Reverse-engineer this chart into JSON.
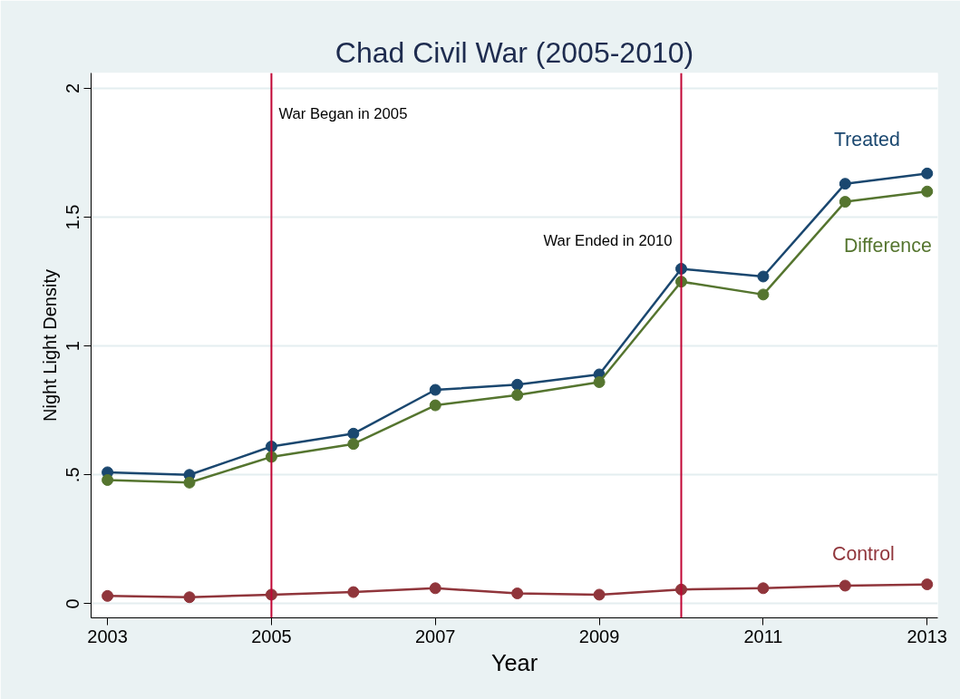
{
  "chart_data": {
    "type": "line",
    "title": "Chad Civil War (2005-2010)",
    "xlabel": "Year",
    "ylabel": "Night Light Density",
    "x": [
      2003,
      2004,
      2005,
      2006,
      2007,
      2008,
      2009,
      2010,
      2011,
      2012,
      2013
    ],
    "series": [
      {
        "name": "Treated",
        "color": "#1a476f",
        "values": [
          0.51,
          0.5,
          0.61,
          0.66,
          0.83,
          0.85,
          0.89,
          1.3,
          1.27,
          1.63,
          1.67
        ]
      },
      {
        "name": "Difference",
        "color": "#55752f",
        "values": [
          0.48,
          0.47,
          0.57,
          0.62,
          0.77,
          0.81,
          0.86,
          1.25,
          1.2,
          1.56,
          1.6
        ]
      },
      {
        "name": "Control",
        "color": "#90353b",
        "values": [
          0.03,
          0.025,
          0.035,
          0.045,
          0.06,
          0.04,
          0.035,
          0.055,
          0.06,
          0.07,
          0.075
        ]
      }
    ],
    "ref_lines": [
      {
        "axis": "x",
        "value": 2005,
        "label": "War Began in 2005",
        "color": "#c10534"
      },
      {
        "axis": "x",
        "value": 2010,
        "label": "War Ended in 2010",
        "color": "#c10534"
      }
    ],
    "xlim": [
      2002.8,
      2013.13
    ],
    "xticks": [
      2003,
      2005,
      2007,
      2009,
      2011,
      2013
    ],
    "ylim": [
      -0.055,
      2.06
    ],
    "yticks": [
      0,
      {
        "value": 0.5,
        "label": ".5"
      },
      1,
      1.5,
      2
    ],
    "grid": "y",
    "marker": "circle",
    "line_style": "solid"
  }
}
